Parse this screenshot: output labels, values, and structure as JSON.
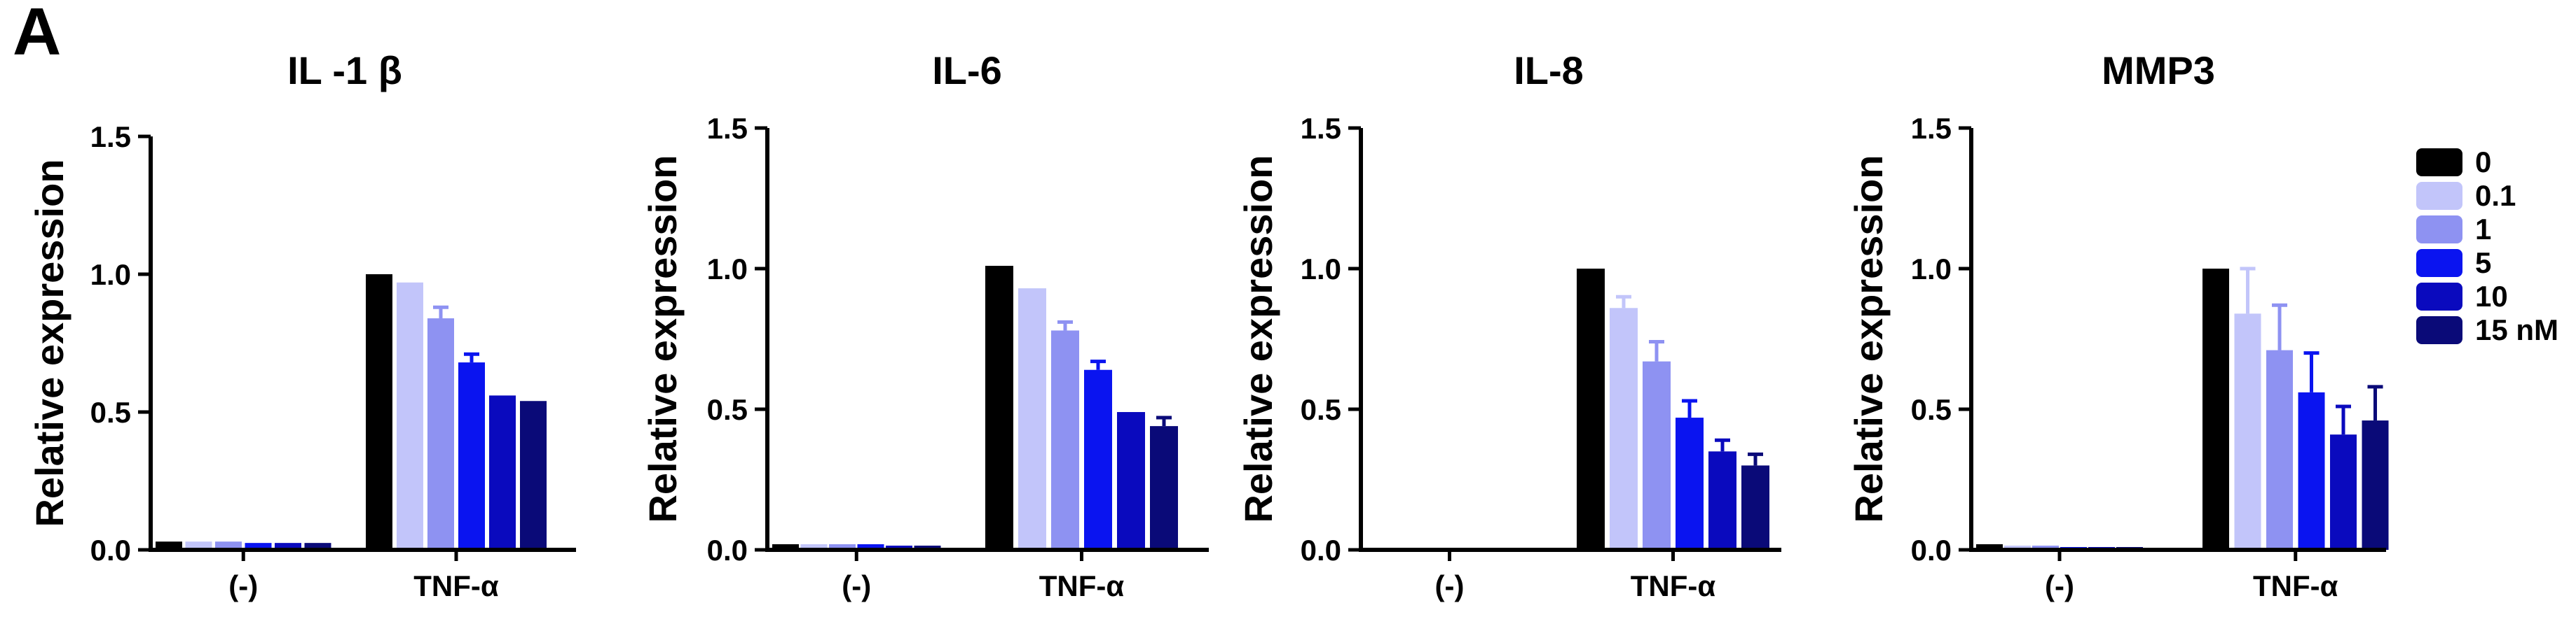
{
  "panel_label": "A",
  "chart_data": [
    {
      "type": "bar",
      "title": "IL -1 β",
      "xlabel": "",
      "ylabel": "Relative expression",
      "ylim": [
        0,
        1.5
      ],
      "yticks": [
        "0.0",
        "0.5",
        "1.0",
        "1.5"
      ],
      "categories": [
        "(-)",
        "TNF-α"
      ],
      "series": [
        {
          "name": "0",
          "values": [
            0.03,
            1.0
          ],
          "errors": [
            0.005,
            0.005
          ]
        },
        {
          "name": "0.1",
          "values": [
            0.03,
            0.97
          ],
          "errors": [
            0.005,
            0.02
          ]
        },
        {
          "name": "1",
          "values": [
            0.03,
            0.84
          ],
          "errors": [
            0.005,
            0.04
          ]
        },
        {
          "name": "5",
          "values": [
            0.025,
            0.68
          ],
          "errors": [
            0.005,
            0.03
          ]
        },
        {
          "name": "10",
          "values": [
            0.025,
            0.56
          ],
          "errors": [
            0.005,
            0.02
          ]
        },
        {
          "name": "15 nM",
          "values": [
            0.025,
            0.54
          ],
          "errors": [
            0.005,
            0.02
          ]
        }
      ]
    },
    {
      "type": "bar",
      "title": "IL-6",
      "xlabel": "",
      "ylabel": "Relative expression",
      "ylim": [
        0,
        1.5
      ],
      "yticks": [
        "0.0",
        "0.5",
        "1.0",
        "1.5"
      ],
      "categories": [
        "(-)",
        "TNF-α"
      ],
      "series": [
        {
          "name": "0",
          "values": [
            0.02,
            1.01
          ],
          "errors": [
            0.005,
            0.005
          ]
        },
        {
          "name": "0.1",
          "values": [
            0.02,
            0.93
          ],
          "errors": [
            0.005,
            0.02
          ]
        },
        {
          "name": "1",
          "values": [
            0.02,
            0.78
          ],
          "errors": [
            0.005,
            0.03
          ]
        },
        {
          "name": "5",
          "values": [
            0.02,
            0.64
          ],
          "errors": [
            0.005,
            0.03
          ]
        },
        {
          "name": "10",
          "values": [
            0.015,
            0.49
          ],
          "errors": [
            0.005,
            0.01
          ]
        },
        {
          "name": "15 nM",
          "values": [
            0.015,
            0.44
          ],
          "errors": [
            0.005,
            0.03
          ]
        }
      ]
    },
    {
      "type": "bar",
      "title": "IL-8",
      "xlabel": "",
      "ylabel": "Relative expression",
      "ylim": [
        0,
        1.5
      ],
      "yticks": [
        "0.0",
        "0.5",
        "1.0",
        "1.5"
      ],
      "categories": [
        "(-)",
        "TNF-α"
      ],
      "series": [
        {
          "name": "0",
          "values": [
            0.0,
            1.0
          ],
          "errors": [
            0,
            0.005
          ]
        },
        {
          "name": "0.1",
          "values": [
            0.0,
            0.86
          ],
          "errors": [
            0,
            0.04
          ]
        },
        {
          "name": "1",
          "values": [
            0.0,
            0.67
          ],
          "errors": [
            0,
            0.07
          ]
        },
        {
          "name": "5",
          "values": [
            0.0,
            0.47
          ],
          "errors": [
            0,
            0.06
          ]
        },
        {
          "name": "10",
          "values": [
            0.0,
            0.35
          ],
          "errors": [
            0,
            0.04
          ]
        },
        {
          "name": "15 nM",
          "values": [
            0.0,
            0.3
          ],
          "errors": [
            0,
            0.04
          ]
        }
      ]
    },
    {
      "type": "bar",
      "title": "MMP3",
      "xlabel": "",
      "ylabel": "Relative expression",
      "ylim": [
        0,
        1.5
      ],
      "yticks": [
        "0.0",
        "0.5",
        "1.0",
        "1.5"
      ],
      "categories": [
        "(-)",
        "TNF-α"
      ],
      "series": [
        {
          "name": "0",
          "values": [
            0.02,
            1.0
          ],
          "errors": [
            0.005,
            0.005
          ]
        },
        {
          "name": "0.1",
          "values": [
            0.015,
            0.84
          ],
          "errors": [
            0.005,
            0.16
          ]
        },
        {
          "name": "1",
          "values": [
            0.015,
            0.71
          ],
          "errors": [
            0.005,
            0.16
          ]
        },
        {
          "name": "5",
          "values": [
            0.01,
            0.56
          ],
          "errors": [
            0.005,
            0.14
          ]
        },
        {
          "name": "10",
          "values": [
            0.01,
            0.41
          ],
          "errors": [
            0.005,
            0.1
          ]
        },
        {
          "name": "15 nM",
          "values": [
            0.01,
            0.46
          ],
          "errors": [
            0.005,
            0.12
          ]
        }
      ]
    }
  ],
  "legend": {
    "placement": "right",
    "entries": [
      "0",
      "0.1",
      "1",
      "5",
      "10",
      "15 nM"
    ]
  },
  "colors": {
    "series": [
      "#000000",
      "#C2C5FA",
      "#8E92F2",
      "#0A14F0",
      "#0A0ABE",
      "#0A0A78"
    ],
    "axis": "#000000"
  }
}
